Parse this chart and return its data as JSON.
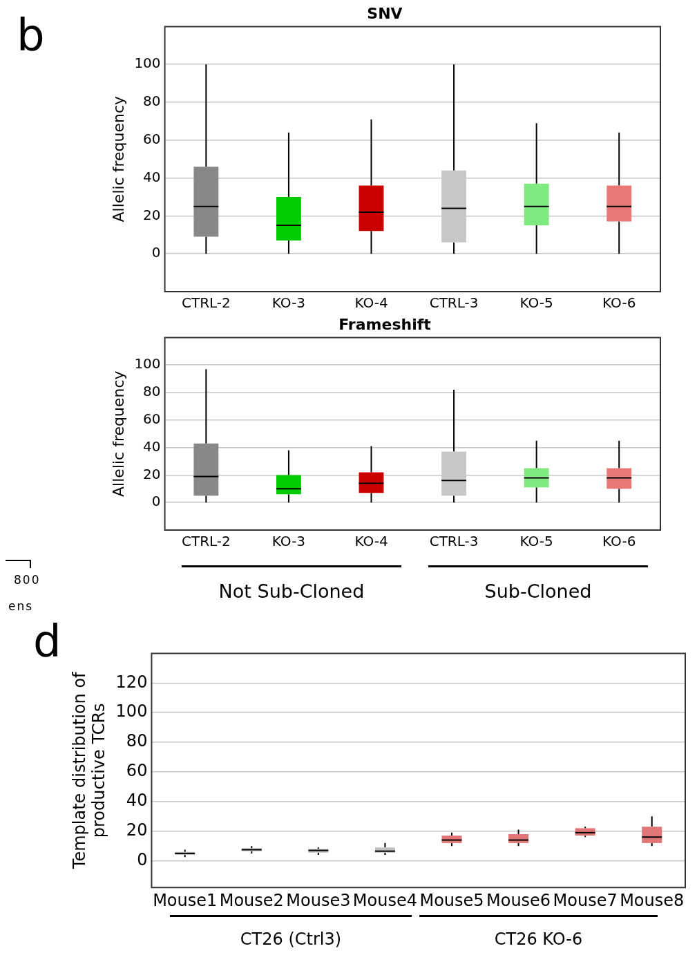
{
  "chart_data": [
    {
      "type": "box",
      "title": "SNV",
      "ylabel": "Allelic frequency",
      "categories": [
        "CTRL-2",
        "KO-3",
        "KO-4",
        "CTRL-3",
        "KO-5",
        "KO-6"
      ],
      "colors": [
        "#888888",
        "#00cc00",
        "#cc0000",
        "#c8c8c8",
        "#80e880",
        "#e87878"
      ],
      "boxes": [
        {
          "low": 0,
          "q1": 9,
          "median": 25,
          "q3": 46,
          "high": 100
        },
        {
          "low": 0,
          "q1": 7,
          "median": 15,
          "q3": 30,
          "high": 64
        },
        {
          "low": 0,
          "q1": 12,
          "median": 22,
          "q3": 36,
          "high": 71
        },
        {
          "low": 0,
          "q1": 6,
          "median": 24,
          "q3": 44,
          "high": 100
        },
        {
          "low": 0,
          "q1": 15,
          "median": 25,
          "q3": 37,
          "high": 69
        },
        {
          "low": 0,
          "q1": 17,
          "median": 25,
          "q3": 36,
          "high": 64
        }
      ],
      "ylim": [
        -20,
        120
      ],
      "yticks": [
        0,
        20,
        40,
        60,
        80,
        100
      ],
      "grid": "y",
      "annotations": [
        "b"
      ]
    },
    {
      "type": "box",
      "title": "Frameshift",
      "ylabel": "Allelic frequency",
      "categories": [
        "CTRL-2",
        "KO-3",
        "KO-4",
        "CTRL-3",
        "KO-5",
        "KO-6"
      ],
      "colors": [
        "#888888",
        "#00cc00",
        "#cc0000",
        "#c8c8c8",
        "#80e880",
        "#e87878"
      ],
      "boxes": [
        {
          "low": 0,
          "q1": 5,
          "median": 19,
          "q3": 43,
          "high": 97
        },
        {
          "low": 0,
          "q1": 6,
          "median": 10,
          "q3": 20,
          "high": 38
        },
        {
          "low": 0,
          "q1": 7,
          "median": 14,
          "q3": 22,
          "high": 41
        },
        {
          "low": 0,
          "q1": 5,
          "median": 16,
          "q3": 37,
          "high": 82
        },
        {
          "low": 0,
          "q1": 11,
          "median": 18,
          "q3": 25,
          "high": 45
        },
        {
          "low": 0,
          "q1": 10,
          "median": 18,
          "q3": 25,
          "high": 45
        }
      ],
      "ylim": [
        -20,
        120
      ],
      "yticks": [
        0,
        20,
        40,
        60,
        80,
        100
      ],
      "grid": "y",
      "annotations": [
        "Not Sub-Cloned",
        "Sub-Cloned",
        "800",
        "ens"
      ]
    },
    {
      "type": "box",
      "ylabel": "Template distribution of\nproductive TCRs",
      "categories": [
        "Mouse1",
        "Mouse2",
        "Mouse3",
        "Mouse4",
        "Mouse5",
        "Mouse6",
        "Mouse7",
        "Mouse8"
      ],
      "colors": [
        "#c0c0c0",
        "#c0c0c0",
        "#c0c0c0",
        "#c0c0c0",
        "#e27676",
        "#e27676",
        "#e27676",
        "#e27676"
      ],
      "boxes": [
        {
          "low": 2.5,
          "q1": 4,
          "median": 5,
          "q3": 6,
          "high": 7.5
        },
        {
          "low": 5,
          "q1": 6.5,
          "median": 7.5,
          "q3": 8.5,
          "high": 10
        },
        {
          "low": 4,
          "q1": 5.5,
          "median": 7,
          "q3": 8,
          "high": 9
        },
        {
          "low": 4,
          "q1": 5.5,
          "median": 6.5,
          "q3": 9,
          "high": 12
        },
        {
          "low": 10,
          "q1": 12,
          "median": 14,
          "q3": 17,
          "high": 19
        },
        {
          "low": 10,
          "q1": 12,
          "median": 14,
          "q3": 18,
          "high": 21
        },
        {
          "low": 16,
          "q1": 17,
          "median": 19,
          "q3": 22,
          "high": 23
        },
        {
          "low": 10,
          "q1": 12,
          "median": 16,
          "q3": 23,
          "high": 30
        }
      ],
      "ylim": [
        -18,
        140
      ],
      "yticks": [
        0,
        20,
        40,
        60,
        80,
        100,
        120
      ],
      "grid": "y",
      "annotations": [
        "d",
        "CT26 (Ctrl3)",
        "CT26 KO-6"
      ]
    }
  ]
}
